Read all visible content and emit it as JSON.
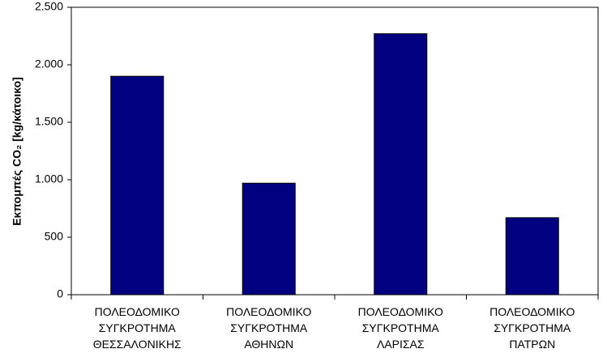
{
  "chart_data": {
    "type": "bar",
    "y_label": "Εκπομπές CO₂ [kg/κάτοικο]",
    "categories": [
      "ΠΟΛΕΟΔΟΜΙΚΟ\nΣΥΓΚΡΟΤΗΜΑ\nΘΕΣΣΑΛΟΝΙΚΗΣ",
      "ΠΟΛΕΟΔΟΜΙΚΟ\nΣΥΓΚΡΟΤΗΜΑ\nΑΘΗΝΩΝ",
      "ΠΟΛΕΟΔΟΜΙΚΟ\nΣΥΓΚΡΟΤΗΜΑ\nΛΑΡΙΣΑΣ",
      "ΠΟΛΕΟΔΟΜΙΚΟ\nΣΥΓΚΡΟΤΗΜΑ\nΠΑΤΡΩΝ"
    ],
    "values": [
      1900,
      970,
      2270,
      670
    ],
    "color": "#000080",
    "ylim": [
      0,
      2500
    ],
    "yticks": [
      0,
      500,
      {
        "value": 1000,
        "label": "1.000"
      },
      {
        "value": 1500,
        "label": "1.500"
      },
      {
        "value": 2000,
        "label": "2.000"
      },
      {
        "value": 2500,
        "label": "2.500"
      }
    ],
    "grid": false
  }
}
